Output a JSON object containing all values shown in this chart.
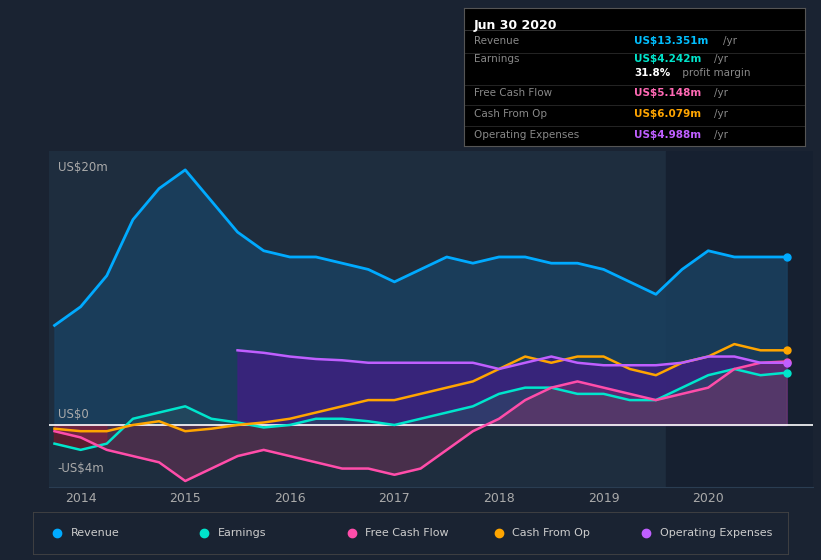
{
  "bg_color": "#1a2332",
  "plot_bg_color": "#1e2d3e",
  "grid_color": "#2a3d52",
  "zero_line_color": "#ffffff",
  "title_box": {
    "date": "Jun 30 2020",
    "rows": [
      {
        "label": "Revenue",
        "value": "US$13.351m",
        "unit": "/yr",
        "value_color": "#00bfff"
      },
      {
        "label": "Earnings",
        "value": "US$4.242m",
        "unit": "/yr",
        "value_color": "#00e5cc"
      },
      {
        "label": "",
        "value": "31.8%",
        "unit": " profit margin",
        "value_color": "#ffffff"
      },
      {
        "label": "Free Cash Flow",
        "value": "US$5.148m",
        "unit": "/yr",
        "value_color": "#ff69b4"
      },
      {
        "label": "Cash From Op",
        "value": "US$6.079m",
        "unit": "/yr",
        "value_color": "#ffa500"
      },
      {
        "label": "Operating Expenses",
        "value": "US$4.988m",
        "unit": "/yr",
        "value_color": "#bf5fff"
      }
    ]
  },
  "ylabel_top": "US$20m",
  "ylabel_zero": "US$0",
  "ylabel_bottom": "-US$4m",
  "ylim": [
    -5,
    22
  ],
  "xlim": [
    2013.7,
    2021.0
  ],
  "xticks": [
    2014,
    2015,
    2016,
    2017,
    2018,
    2019,
    2020
  ],
  "highlight_start": 2019.6,
  "highlight_end": 2021.0,
  "highlight_color": "#162030",
  "revenue_color": "#00aaff",
  "revenue_fill_color": "#1a4060",
  "earnings_color": "#00e5cc",
  "fcf_color": "#ff4daa",
  "cashfromop_color": "#ffa500",
  "opex_color": "#bf5fff",
  "opex_fill_color": "#3d2080",
  "x_revenue": [
    2013.75,
    2014.0,
    2014.25,
    2014.5,
    2014.75,
    2015.0,
    2015.25,
    2015.5,
    2015.75,
    2016.0,
    2016.25,
    2016.5,
    2016.75,
    2017.0,
    2017.25,
    2017.5,
    2017.75,
    2018.0,
    2018.25,
    2018.5,
    2018.75,
    2019.0,
    2019.25,
    2019.5,
    2019.75,
    2020.0,
    2020.25,
    2020.5,
    2020.75
  ],
  "y_revenue": [
    8.0,
    9.5,
    12.0,
    16.5,
    19.0,
    20.5,
    18.0,
    15.5,
    14.0,
    13.5,
    13.5,
    13.0,
    12.5,
    11.5,
    12.5,
    13.5,
    13.0,
    13.5,
    13.5,
    13.0,
    13.0,
    12.5,
    11.5,
    10.5,
    12.5,
    14.0,
    13.5,
    13.5,
    13.5
  ],
  "x_earnings": [
    2013.75,
    2014.0,
    2014.25,
    2014.5,
    2014.75,
    2015.0,
    2015.25,
    2015.5,
    2015.75,
    2016.0,
    2016.25,
    2016.5,
    2016.75,
    2017.0,
    2017.25,
    2017.5,
    2017.75,
    2018.0,
    2018.25,
    2018.5,
    2018.75,
    2019.0,
    2019.25,
    2019.5,
    2019.75,
    2020.0,
    2020.25,
    2020.5,
    2020.75
  ],
  "y_earnings": [
    -1.5,
    -2.0,
    -1.5,
    0.5,
    1.0,
    1.5,
    0.5,
    0.2,
    -0.2,
    0.0,
    0.5,
    0.5,
    0.3,
    0.0,
    0.5,
    1.0,
    1.5,
    2.5,
    3.0,
    3.0,
    2.5,
    2.5,
    2.0,
    2.0,
    3.0,
    4.0,
    4.5,
    4.0,
    4.2
  ],
  "x_fcf": [
    2013.75,
    2014.0,
    2014.25,
    2014.5,
    2014.75,
    2015.0,
    2015.25,
    2015.5,
    2015.75,
    2016.0,
    2016.25,
    2016.5,
    2016.75,
    2017.0,
    2017.25,
    2017.5,
    2017.75,
    2018.0,
    2018.25,
    2018.5,
    2018.75,
    2019.0,
    2019.25,
    2019.5,
    2019.75,
    2020.0,
    2020.25,
    2020.5,
    2020.75
  ],
  "y_fcf": [
    -0.5,
    -1.0,
    -2.0,
    -2.5,
    -3.0,
    -4.5,
    -3.5,
    -2.5,
    -2.0,
    -2.5,
    -3.0,
    -3.5,
    -3.5,
    -4.0,
    -3.5,
    -2.0,
    -0.5,
    0.5,
    2.0,
    3.0,
    3.5,
    3.0,
    2.5,
    2.0,
    2.5,
    3.0,
    4.5,
    5.0,
    5.1
  ],
  "x_cashfromop": [
    2013.75,
    2014.0,
    2014.25,
    2014.5,
    2014.75,
    2015.0,
    2015.25,
    2015.5,
    2015.75,
    2016.0,
    2016.25,
    2016.5,
    2016.75,
    2017.0,
    2017.25,
    2017.5,
    2017.75,
    2018.0,
    2018.25,
    2018.5,
    2018.75,
    2019.0,
    2019.25,
    2019.5,
    2019.75,
    2020.0,
    2020.25,
    2020.5,
    2020.75
  ],
  "y_cashfromop": [
    -0.3,
    -0.5,
    -0.5,
    0.0,
    0.3,
    -0.5,
    -0.3,
    0.0,
    0.2,
    0.5,
    1.0,
    1.5,
    2.0,
    2.0,
    2.5,
    3.0,
    3.5,
    4.5,
    5.5,
    5.0,
    5.5,
    5.5,
    4.5,
    4.0,
    5.0,
    5.5,
    6.5,
    6.0,
    6.0
  ],
  "x_opex": [
    2015.5,
    2015.75,
    2016.0,
    2016.25,
    2016.5,
    2016.75,
    2017.0,
    2017.25,
    2017.5,
    2017.75,
    2018.0,
    2018.25,
    2018.5,
    2018.75,
    2019.0,
    2019.25,
    2019.5,
    2019.75,
    2020.0,
    2020.25,
    2020.5,
    2020.75
  ],
  "y_opex": [
    6.0,
    5.8,
    5.5,
    5.3,
    5.2,
    5.0,
    5.0,
    5.0,
    5.0,
    5.0,
    4.5,
    5.0,
    5.5,
    5.0,
    4.8,
    4.8,
    4.8,
    5.0,
    5.5,
    5.5,
    5.0,
    5.0
  ],
  "legend": [
    {
      "label": "Revenue",
      "color": "#00aaff"
    },
    {
      "label": "Earnings",
      "color": "#00e5cc"
    },
    {
      "label": "Free Cash Flow",
      "color": "#ff4daa"
    },
    {
      "label": "Cash From Op",
      "color": "#ffa500"
    },
    {
      "label": "Operating Expenses",
      "color": "#bf5fff"
    }
  ]
}
